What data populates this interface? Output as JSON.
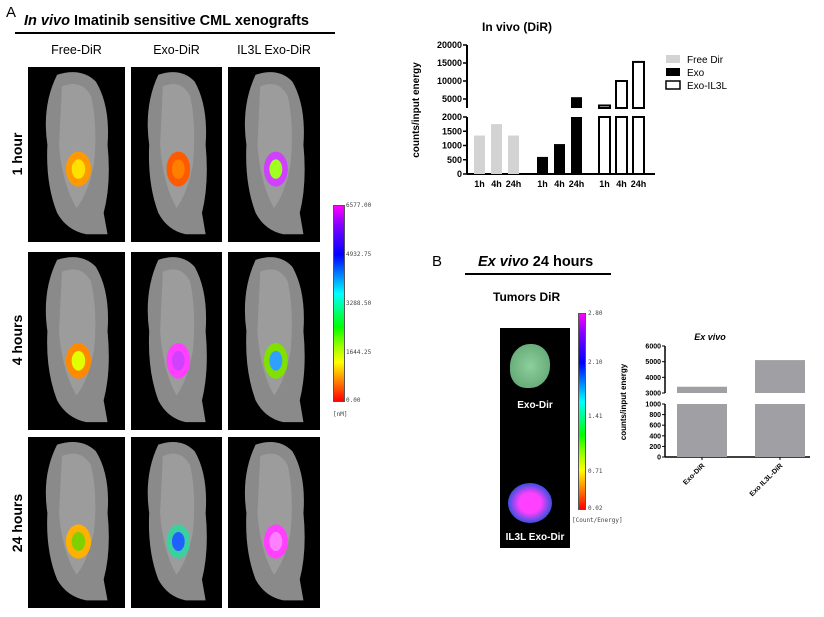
{
  "panel_a": {
    "letter": "A",
    "title_italic": "In vivo",
    "title_rest": " Imatinib sensitive CML xenografts",
    "columns": [
      "Free-DiR",
      "Exo-DiR",
      "IL3L Exo-DiR"
    ],
    "rows": [
      "1 hour",
      "4 hours",
      "24 hours"
    ],
    "colorbar": {
      "ticks": [
        "6577.00",
        "4932.75",
        "3288.50",
        "1644.25",
        "0.00"
      ],
      "unit": "[nM]"
    }
  },
  "panel_b": {
    "letter": "B",
    "title_italic": "Ex vivo",
    "title_rest": " 24 hours",
    "image_title": "Tumors DiR",
    "tumor_labels": [
      "Exo-Dir",
      "IL3L Exo-Dir"
    ],
    "colorbar": {
      "ticks": [
        "2.80",
        "2.10",
        "1.41",
        "0.71",
        "0.02"
      ],
      "unit": "[Count/Energy]"
    }
  },
  "chart_data": [
    {
      "type": "bar",
      "title": "In vivo (DiR)",
      "ylabel": "counts/input energy",
      "xlabel": "",
      "categories": [
        "1h",
        "4h",
        "24h"
      ],
      "series": [
        {
          "name": "Free Dir",
          "values": [
            1350,
            1750,
            1350
          ],
          "color": "#d3d3d3"
        },
        {
          "name": "Exo",
          "values": [
            600,
            1050,
            5500
          ],
          "color": "#000000"
        },
        {
          "name": "Exo-IL3L",
          "values": [
            3200,
            10000,
            15300
          ],
          "color": "#ffffff"
        }
      ],
      "y_axis_break": true,
      "ylim_lower": [
        0,
        2000
      ],
      "ylim_upper": [
        2500,
        20000
      ],
      "yticks_lower": [
        0,
        500,
        1000,
        1500,
        2000
      ],
      "yticks_upper": [
        5000,
        10000,
        15000,
        20000
      ],
      "legend": "right",
      "grid": false
    },
    {
      "type": "bar",
      "title": "Ex vivo",
      "ylabel": "counts/input energy",
      "xlabel": "",
      "categories": [
        "Exo-DiR",
        "Exo IL3L-DiR"
      ],
      "values": [
        3400,
        5100
      ],
      "color": "#a0a0a4",
      "y_axis_break": true,
      "ylim_lower": [
        0,
        1000
      ],
      "ylim_upper": [
        3000,
        6000
      ],
      "yticks_lower": [
        0,
        200,
        400,
        600,
        800,
        1000
      ],
      "yticks_upper": [
        3000,
        4000,
        5000,
        6000
      ],
      "grid": false
    }
  ]
}
